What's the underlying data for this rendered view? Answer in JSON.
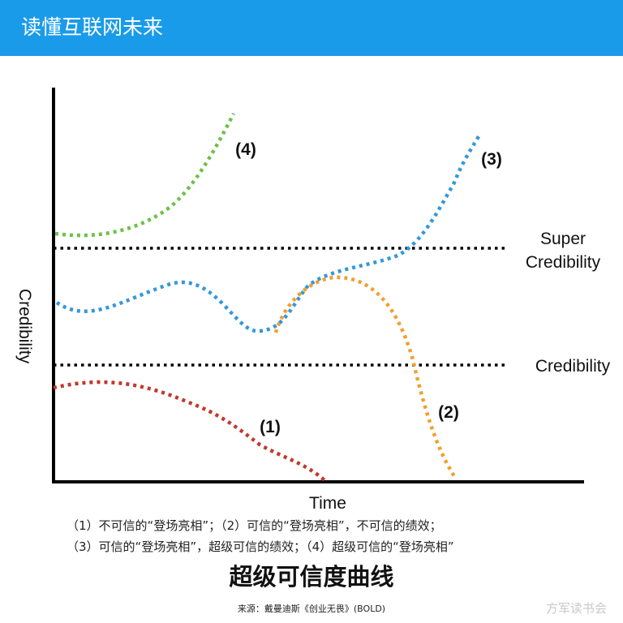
{
  "header": {
    "title": "读懂互联网未来"
  },
  "chart_data": {
    "type": "line",
    "xlabel": "Time",
    "ylabel": "Credibility",
    "reference_lines": [
      {
        "label": "Super Credibility",
        "label_lines": [
          "Super",
          "Credibility"
        ]
      },
      {
        "label": "Credibility",
        "label_lines": [
          "Credibility"
        ]
      }
    ],
    "series": [
      {
        "name": "(1)",
        "color": "#c0392b"
      },
      {
        "name": "(2)",
        "color": "#f0a030"
      },
      {
        "name": "(3)",
        "color": "#3498db"
      },
      {
        "name": "(4)",
        "color": "#6cc24a"
      }
    ],
    "grid": false
  },
  "captions": {
    "line1": "（1）不可信的“登场亮相”；（2）可信的“登场亮相”，不可信的绩效；",
    "line2": "（3）可信的“登场亮相”，超级可信的绩效；（4）超级可信的“登场亮相”"
  },
  "title": "超级可信度曲线",
  "source": "来源：戴曼迪斯《创业无畏》(BOLD)",
  "watermark": "方军读书会"
}
